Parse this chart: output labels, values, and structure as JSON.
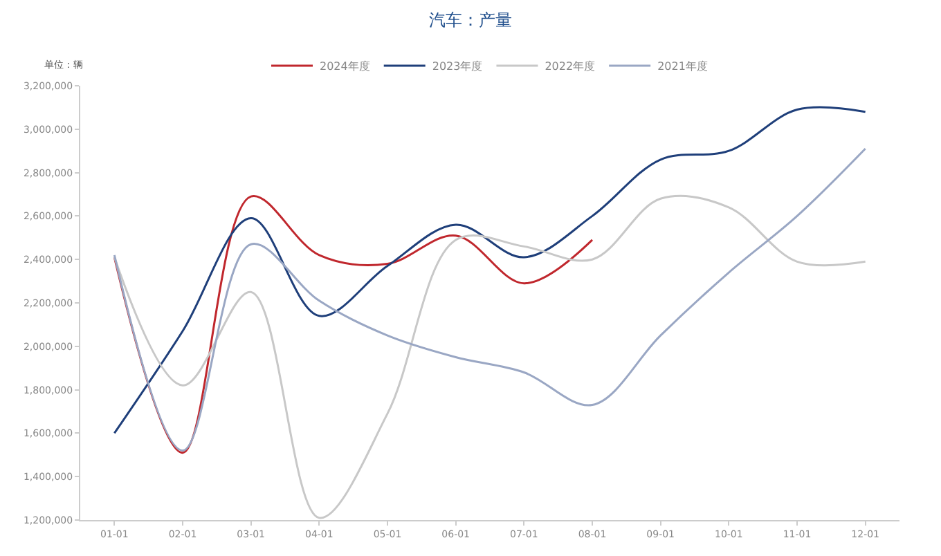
{
  "chart_data": {
    "type": "line",
    "title": "汽车：产量",
    "annotations": [
      "单位：辆"
    ],
    "categories": [
      "01-01",
      "02-01",
      "03-01",
      "04-01",
      "05-01",
      "06-01",
      "07-01",
      "08-01",
      "09-01",
      "10-01",
      "11-01",
      "12-01"
    ],
    "series": [
      {
        "name": "2024年度",
        "color": "#c0272d",
        "values": [
          2410000,
          1510000,
          2690000,
          2420000,
          2380000,
          2510000,
          2290000,
          2490000,
          null,
          null,
          null,
          null
        ]
      },
      {
        "name": "2023年度",
        "color": "#1f3f7a",
        "values": [
          1600000,
          2070000,
          2590000,
          2140000,
          2370000,
          2560000,
          2410000,
          2600000,
          2860000,
          2900000,
          3090000,
          3080000
        ]
      },
      {
        "name": "2022年度",
        "color": "#c8c8c8",
        "values": [
          2410000,
          1820000,
          2250000,
          1210000,
          1690000,
          2490000,
          2460000,
          2400000,
          2680000,
          2640000,
          2390000,
          2390000
        ]
      },
      {
        "name": "2021年度",
        "color": "#9aa7c4",
        "values": [
          2420000,
          1520000,
          2470000,
          2210000,
          2050000,
          1950000,
          1880000,
          1730000,
          2050000,
          2340000,
          2600000,
          2910000
        ]
      }
    ],
    "ylim": [
      1200000,
      3200000
    ],
    "yticks": [
      {
        "value": 1200000,
        "label": "1,200,000"
      },
      {
        "value": 1400000,
        "label": "1,400,000"
      },
      {
        "value": 1600000,
        "label": "1,600,000"
      },
      {
        "value": 1800000,
        "label": "1,800,000"
      },
      {
        "value": 2000000,
        "label": "2,000,000"
      },
      {
        "value": 2200000,
        "label": "2,200,000"
      },
      {
        "value": 2400000,
        "label": "2,400,000"
      },
      {
        "value": 2600000,
        "label": "2,600,000"
      },
      {
        "value": 2800000,
        "label": "2,800,000"
      },
      {
        "value": 3000000,
        "label": "3,000,000"
      },
      {
        "value": 3200000,
        "label": "3,200,000"
      }
    ],
    "legend": "top",
    "marker": "none",
    "line_style": "solid"
  }
}
